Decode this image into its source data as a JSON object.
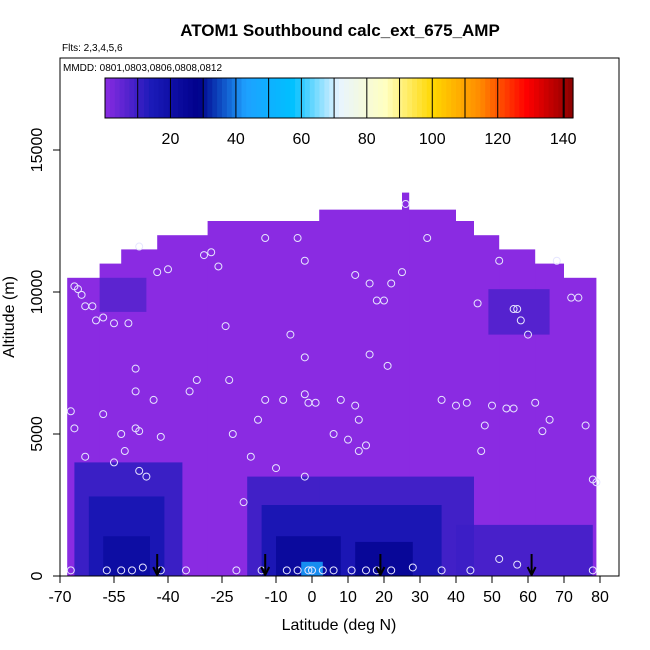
{
  "chart_data": {
    "type": "heatmap",
    "title": "ATOM1 Southbound calc_ext_675_AMP",
    "subtitle_flights": "Flts: 2,3,4,5,6",
    "subtitle_dates": "MMDD: 0801,0803,0806,0808,0812",
    "xlabel": "Latitude (deg N)",
    "ylabel": "Altitude (m)",
    "xlim": [
      -70,
      85
    ],
    "ylim": [
      0,
      17500
    ],
    "x_ticks": [
      -70,
      -55,
      -40,
      -25,
      -10,
      0,
      10,
      20,
      30,
      40,
      50,
      60,
      70,
      80
    ],
    "y_ticks": [
      0,
      5000,
      10000,
      15000
    ],
    "colorbar": {
      "min": 0,
      "max": 143,
      "ticks": [
        20,
        40,
        60,
        80,
        100,
        120,
        140
      ],
      "colors": [
        "#8a2be2",
        "#1a1ab8",
        "#00008b",
        "#1ea0ff",
        "#00c0ff",
        "#e8f4ff",
        "#ffffc0",
        "#ffd700",
        "#ff8c00",
        "#ff0000",
        "#8b0000"
      ]
    },
    "background_value": 3,
    "background_color": "#8a2be2",
    "envelope": [
      {
        "lat_min": -67,
        "lat_max": 78,
        "alt_top": 4000
      },
      {
        "lat_min": -68,
        "lat_max": 79,
        "alt_top": 10500
      },
      {
        "lat_min": -59,
        "lat_max": 70,
        "alt_top": 11000
      },
      {
        "lat_min": -53,
        "lat_max": 62,
        "alt_top": 11500
      },
      {
        "lat_min": -43,
        "lat_max": 52,
        "alt_top": 12000
      },
      {
        "lat_min": -29,
        "lat_max": 45,
        "alt_top": 12500
      },
      {
        "lat_min": 2,
        "lat_max": 40,
        "alt_top": 12900
      },
      {
        "lat_min": 25,
        "lat_max": 27,
        "alt_top": 13500
      }
    ],
    "hotspots": [
      {
        "lat_min": -66,
        "lat_max": -36,
        "alt_min": 0,
        "alt_max": 4000,
        "value": 12
      },
      {
        "lat_min": -62,
        "lat_max": -41,
        "alt_min": 0,
        "alt_max": 2800,
        "value": 17
      },
      {
        "lat_min": -58,
        "lat_max": -45,
        "alt_min": 0,
        "alt_max": 1400,
        "value": 22
      },
      {
        "lat_min": -18,
        "lat_max": 45,
        "alt_min": 0,
        "alt_max": 3500,
        "value": 11
      },
      {
        "lat_min": -14,
        "lat_max": 36,
        "alt_min": 0,
        "alt_max": 2500,
        "value": 17
      },
      {
        "lat_min": -10,
        "lat_max": 8,
        "alt_min": 0,
        "alt_max": 1400,
        "value": 24
      },
      {
        "lat_min": 12,
        "lat_max": 28,
        "alt_min": 0,
        "alt_max": 1200,
        "value": 26
      },
      {
        "lat_min": -3,
        "lat_max": 3,
        "alt_min": 0,
        "alt_max": 500,
        "value": 45
      },
      {
        "lat_min": 40,
        "lat_max": 78,
        "alt_min": 0,
        "alt_max": 1800,
        "value": 10
      },
      {
        "lat_min": 49,
        "lat_max": 66,
        "alt_min": 8500,
        "alt_max": 10100,
        "value": 8
      },
      {
        "lat_min": -59,
        "lat_max": -46,
        "alt_min": 9300,
        "alt_max": 10500,
        "value": 7
      }
    ],
    "sample_points": [
      [
        -67,
        200
      ],
      [
        -66,
        5200
      ],
      [
        -67,
        5800
      ],
      [
        -65,
        10100
      ],
      [
        -66,
        10200
      ],
      [
        -64,
        9900
      ],
      [
        -63,
        9500
      ],
      [
        -61,
        9500
      ],
      [
        -60,
        9000
      ],
      [
        -58,
        9100
      ],
      [
        -55,
        8900
      ],
      [
        -51,
        8900
      ],
      [
        -63,
        4200
      ],
      [
        -58,
        5700
      ],
      [
        -55,
        4000
      ],
      [
        -53,
        5000
      ],
      [
        -52,
        4400
      ],
      [
        -49,
        5200
      ],
      [
        -48,
        5100
      ],
      [
        -48,
        3700
      ],
      [
        -46,
        3500
      ],
      [
        -44,
        6200
      ],
      [
        -42,
        4900
      ],
      [
        -49,
        6500
      ],
      [
        -49,
        7300
      ],
      [
        -57,
        200
      ],
      [
        -53,
        200
      ],
      [
        -50,
        200
      ],
      [
        -47,
        300
      ],
      [
        -42,
        200
      ],
      [
        -35,
        200
      ],
      [
        -48,
        11600
      ],
      [
        -43,
        10700
      ],
      [
        -40,
        10800
      ],
      [
        -34,
        6500
      ],
      [
        -32,
        6900
      ],
      [
        -30,
        11300
      ],
      [
        -28,
        11400
      ],
      [
        -26,
        10900
      ],
      [
        -22,
        5000
      ],
      [
        -23,
        6900
      ],
      [
        -24,
        8800
      ],
      [
        -19,
        2600
      ],
      [
        -17,
        4200
      ],
      [
        -15,
        5500
      ],
      [
        -13,
        6200
      ],
      [
        -10,
        3800
      ],
      [
        -8,
        6200
      ],
      [
        -6,
        8500
      ],
      [
        -2,
        3500
      ],
      [
        -2,
        6400
      ],
      [
        -1,
        6100
      ],
      [
        1,
        6100
      ],
      [
        -2,
        7700
      ],
      [
        -2,
        11100
      ],
      [
        -4,
        11900
      ],
      [
        -13,
        11900
      ],
      [
        6,
        5000
      ],
      [
        8,
        6200
      ],
      [
        10,
        4800
      ],
      [
        12,
        6000
      ],
      [
        13,
        5500
      ],
      [
        13,
        4400
      ],
      [
        15,
        4600
      ],
      [
        16,
        7800
      ],
      [
        18,
        9700
      ],
      [
        20,
        9700
      ],
      [
        21,
        7400
      ],
      [
        22,
        10300
      ],
      [
        16,
        10300
      ],
      [
        12,
        10600
      ],
      [
        26,
        13100
      ],
      [
        25,
        10700
      ],
      [
        32,
        11900
      ],
      [
        36,
        6200
      ],
      [
        40,
        6000
      ],
      [
        43,
        6100
      ],
      [
        46,
        9600
      ],
      [
        47,
        4400
      ],
      [
        48,
        5300
      ],
      [
        50,
        6000
      ],
      [
        52,
        11100
      ],
      [
        54,
        5900
      ],
      [
        56,
        5900
      ],
      [
        56,
        9400
      ],
      [
        57,
        9400
      ],
      [
        58,
        9000
      ],
      [
        60,
        8500
      ],
      [
        62,
        6100
      ],
      [
        64,
        5100
      ],
      [
        66,
        5500
      ],
      [
        68,
        11100
      ],
      [
        72,
        9800
      ],
      [
        74,
        9800
      ],
      [
        76,
        5300
      ],
      [
        79,
        3300
      ],
      [
        78,
        3400
      ],
      [
        -7,
        200
      ],
      [
        -4,
        200
      ],
      [
        -1,
        200
      ],
      [
        0,
        200
      ],
      [
        3,
        200
      ],
      [
        6,
        200
      ],
      [
        11,
        200
      ],
      [
        15,
        200
      ],
      [
        18,
        200
      ],
      [
        22,
        200
      ],
      [
        28,
        300
      ],
      [
        36,
        200
      ],
      [
        44,
        200
      ],
      [
        52,
        600
      ],
      [
        57,
        400
      ],
      [
        78,
        200
      ],
      [
        -21,
        200
      ],
      [
        -14,
        200
      ]
    ],
    "arrows": [
      -43,
      -13,
      19,
      61
    ],
    "grid": false,
    "legend": "top"
  }
}
